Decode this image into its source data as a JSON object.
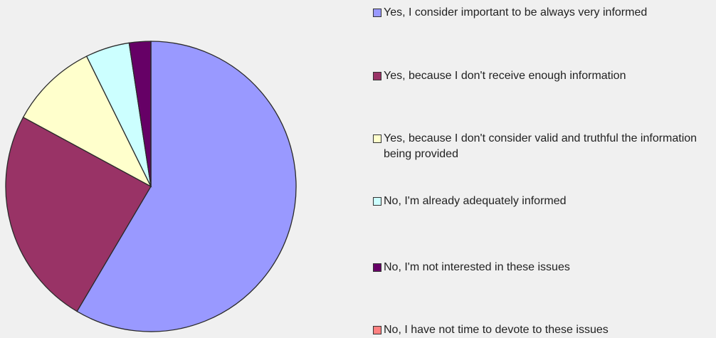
{
  "chart_data": {
    "type": "pie",
    "categories": [
      "Yes, I consider important to be always very informed",
      "Yes, because I don't receive enough information",
      "Yes, because I don't consider valid and truthful the information being provided",
      "No, I'm already adequately informed",
      "No, I'm not interested in these issues",
      "No, I have not time to devote to these issues"
    ],
    "values": [
      58.5,
      24.4,
      9.8,
      4.9,
      2.4,
      0
    ],
    "colors": [
      "#9999ff",
      "#993366",
      "#ffffcc",
      "#ccffff",
      "#660066",
      "#ff8080"
    ],
    "legend": "right"
  }
}
